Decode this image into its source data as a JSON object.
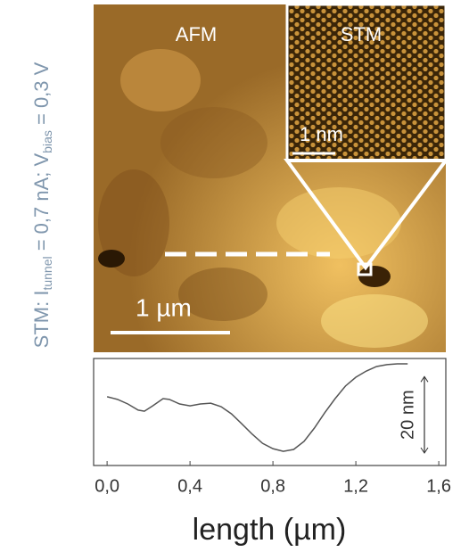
{
  "side_label": {
    "parts": [
      "STM: I",
      "tunnel",
      " = 0,7 nA; V",
      "bias",
      " = 0,3 V"
    ]
  },
  "images": {
    "afm_label": "AFM",
    "stm_label": "STM",
    "stm_scale": "1 nm",
    "afm_scale": "1 µm"
  },
  "chart_data": {
    "type": "line",
    "x": [
      0.0,
      0.05,
      0.1,
      0.15,
      0.18,
      0.22,
      0.27,
      0.3,
      0.35,
      0.4,
      0.45,
      0.5,
      0.55,
      0.6,
      0.65,
      0.7,
      0.75,
      0.8,
      0.85,
      0.9,
      0.95,
      1.0,
      1.05,
      1.1,
      1.15,
      1.2,
      1.25,
      1.3,
      1.35,
      1.4,
      1.45
    ],
    "values": [
      18.0,
      17.3,
      16.1,
      14.5,
      14.2,
      15.6,
      17.5,
      17.3,
      16.1,
      15.6,
      16.1,
      16.3,
      15.4,
      13.5,
      10.9,
      8.2,
      5.8,
      4.4,
      3.7,
      4.2,
      6.3,
      9.8,
      13.8,
      17.5,
      20.8,
      23.1,
      24.7,
      25.9,
      26.4,
      26.6,
      26.6
    ],
    "color": "#555555",
    "xlabel": "length (µm)",
    "xlim": [
      -0.065,
      1.634
    ],
    "ylim": [
      0,
      28
    ],
    "xticks": [
      {
        "value": 0,
        "label": "0,0"
      },
      {
        "value": 0.4,
        "label": "0,4"
      },
      {
        "value": 0.8,
        "label": "0,8"
      },
      {
        "value": 1.2,
        "label": "1,2"
      },
      {
        "value": 1.6,
        "label": "1,6"
      }
    ],
    "scale_bar": {
      "value": 20,
      "label": "20 nm"
    }
  }
}
